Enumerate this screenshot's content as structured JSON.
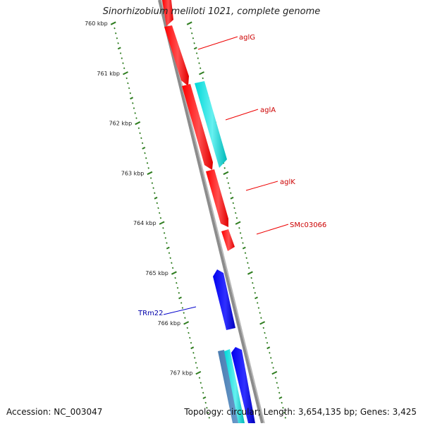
{
  "title": "Sinorhizobium meliloti 1021, complete genome",
  "footer": {
    "accession": "Accession: NC_003047",
    "summary": "Topology: circular; Length: 3,654,135 bp; Genes: 3,425"
  },
  "colors": {
    "backbone": "#8c8c8c",
    "ticks": "#2e7d1f",
    "forward_gene": "#ff0000",
    "forward_gene_alt": "#00cccc",
    "reverse_gene": "#0000ee",
    "forward_label": "#cc0000",
    "reverse_label": "#0000aa"
  },
  "ruler": {
    "labels": [
      "760 kbp",
      "761 kbp",
      "762 kbp",
      "763 kbp",
      "764 kbp",
      "765 kbp",
      "766 kbp",
      "767 kbp"
    ]
  },
  "genes": {
    "forward": [
      {
        "name": "aglG",
        "color": "forward_gene"
      },
      {
        "name": "aglA",
        "color": "forward_gene"
      },
      {
        "name": "",
        "color": "forward_gene_alt"
      },
      {
        "name": "aglK",
        "color": "forward_gene"
      },
      {
        "name": "SMc03066",
        "color": "forward_gene"
      },
      {
        "name": "",
        "color": "forward_gene_alt"
      }
    ],
    "reverse": [
      {
        "name": "TRm22",
        "color": "reverse_gene"
      },
      {
        "name": "",
        "color": "reverse_gene"
      }
    ]
  }
}
